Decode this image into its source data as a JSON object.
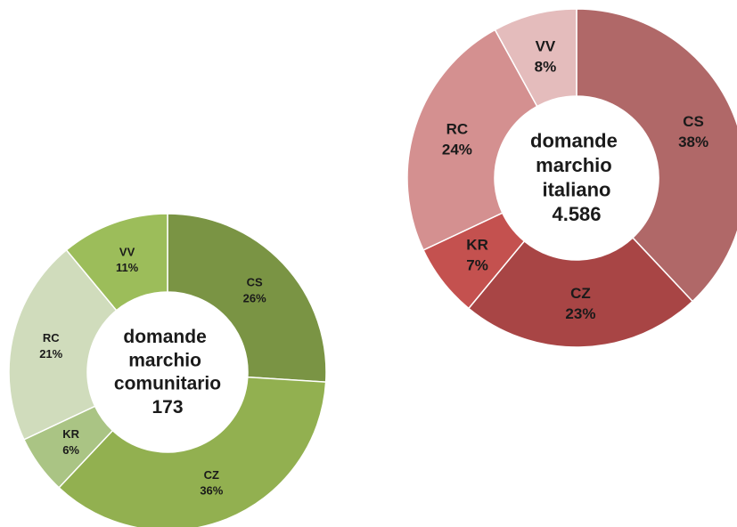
{
  "chart_data": [
    {
      "type": "donut",
      "title": "domande marchio comunitario",
      "total": 173,
      "categories": [
        "CS",
        "CZ",
        "KR",
        "RC",
        "VV"
      ],
      "values": [
        26,
        36,
        6,
        21,
        11
      ],
      "value_labels": [
        "26%",
        "36%",
        "6%",
        "21%",
        "11%"
      ],
      "colors": [
        "#7a9444",
        "#92b050",
        "#aac484",
        "#d0dcbc",
        "#9cbd5a"
      ]
    },
    {
      "type": "donut",
      "title": "domande marchio italiano",
      "total": 4586,
      "total_label": "4.586",
      "categories": [
        "CS",
        "CZ",
        "KR",
        "RC",
        "VV"
      ],
      "values": [
        38,
        23,
        7,
        24,
        8
      ],
      "value_labels": [
        "38%",
        "23%",
        "7%",
        "24%",
        "8%"
      ],
      "colors": [
        "#b06868",
        "#a84545",
        "#c4514f",
        "#d49090",
        "#e4bcbc"
      ]
    }
  ]
}
